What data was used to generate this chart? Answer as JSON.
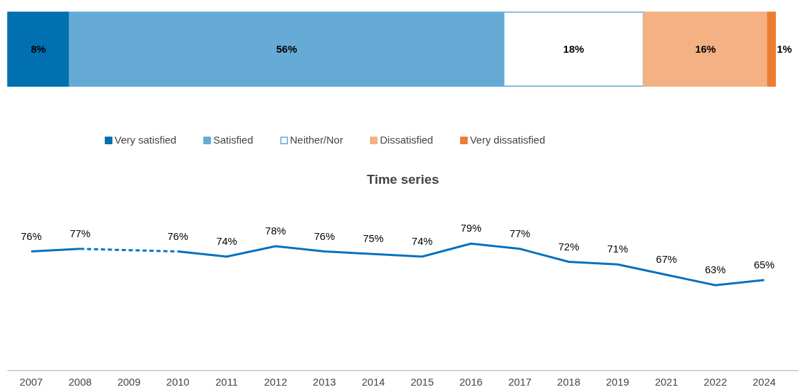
{
  "chart_data": [
    {
      "type": "bar",
      "orientation": "horizontal",
      "stacked": true,
      "categories": [
        null
      ],
      "series": [
        {
          "name": "Very satisfied",
          "color": "#0070b0",
          "values": [
            8
          ],
          "value_labels": [
            "8%"
          ]
        },
        {
          "name": "Satisfied",
          "color": "#65abd5",
          "values": [
            56
          ],
          "value_labels": [
            "56%"
          ]
        },
        {
          "name": "Neither/Nor",
          "color": "#ffffff",
          "values": [
            18
          ],
          "value_labels": [
            "18%"
          ]
        },
        {
          "name": "Dissatisfied",
          "color": "#f4b183",
          "values": [
            16
          ],
          "value_labels": [
            "16%"
          ]
        },
        {
          "name": "Very dissatisfied",
          "color": "#ed7d31",
          "values": [
            1
          ],
          "value_labels": [
            "1%"
          ]
        }
      ],
      "legend": "bottom",
      "grid": false,
      "tick_labels": false
    },
    {
      "type": "line",
      "title": "Time series",
      "categories": [
        "2007",
        "2008",
        "2009",
        "2010",
        "2011",
        "2012",
        "2013",
        "2014",
        "2015",
        "2016",
        "2017",
        "2018",
        "2019",
        "2021",
        "2022",
        "2024"
      ],
      "series": [
        {
          "color": "#0070c0",
          "values": [
            76,
            77,
            null,
            null,
            null,
            null,
            null,
            null,
            null,
            null,
            null,
            null,
            null,
            null,
            null,
            null
          ],
          "value_labels": [
            "76%",
            "77%",
            null,
            null,
            null,
            null,
            null,
            null,
            null,
            null,
            null,
            null,
            null,
            null,
            null,
            null
          ]
        },
        {
          "color": "#0070c0",
          "values": [
            null,
            null,
            null,
            76,
            74,
            78,
            76,
            75,
            74,
            79,
            77,
            72,
            71,
            67,
            63,
            65
          ],
          "value_labels": [
            null,
            null,
            null,
            "76%",
            "74%",
            "78%",
            "76%",
            "75%",
            "74%",
            "79%",
            "77%",
            "72%",
            "71%",
            "67%",
            "63%",
            "65%"
          ]
        },
        {
          "color": "#0070c0",
          "values": [
            null,
            77,
            null,
            76,
            null,
            null,
            null,
            null,
            null,
            null,
            null,
            null,
            null,
            null,
            null,
            null
          ],
          "line_style": "dashed"
        }
      ],
      "grid": false,
      "tick_labels": "x",
      "legend": false
    }
  ]
}
